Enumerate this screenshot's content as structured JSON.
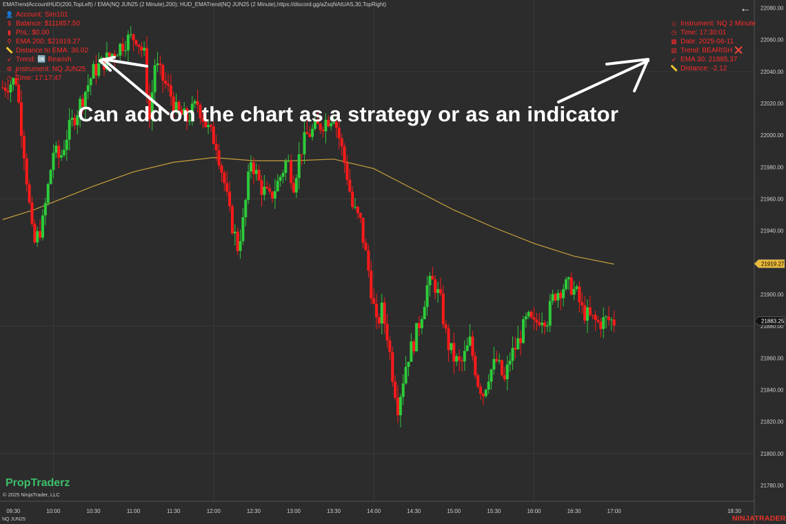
{
  "top_bar": {
    "text": "EMATrendAccountHUD(200,TopLeft) / EMA(NQ JUN25 (2 Minute),200); HUD_EMATrend(NQ JUN25 (2 Minute),https://discord.gg/aZsqNAtUAS,30,TopRight)",
    "back_icon": "arrow-left-icon"
  },
  "hud_left": [
    {
      "icon": "user-icon",
      "glyph": "👤",
      "text": "Account: Sim101"
    },
    {
      "icon": "dollar-icon",
      "glyph": "$",
      "text": "Balance: $111857.50"
    },
    {
      "icon": "bar-chart-icon",
      "glyph": "▮",
      "text": "PnL: $0.00"
    },
    {
      "icon": "pin-icon",
      "glyph": "⚲",
      "text": "EMA 200: $21919.27"
    },
    {
      "icon": "ruler-icon",
      "glyph": "📏",
      "text": "Distance to EMA: 36.02"
    },
    {
      "icon": "trend-icon",
      "glyph": "➶",
      "text": "Trend: 🆗 Bearish"
    },
    {
      "icon": "instrument-icon",
      "glyph": "⚙",
      "text": "Instrument: NQ JUN25"
    },
    {
      "icon": "clock-icon",
      "glyph": "◷",
      "text": "Time: 17:17:47"
    }
  ],
  "hud_right": [
    {
      "icon": "diamond-icon",
      "glyph": "◇",
      "text": "Instrument: NQ 2 Minute"
    },
    {
      "icon": "clock-icon",
      "glyph": "◷",
      "text": "Time: 17:30:01"
    },
    {
      "icon": "calendar-icon",
      "glyph": "▦",
      "text": "Date: 2025-06-11"
    },
    {
      "icon": "chart-icon",
      "glyph": "▤",
      "text": "Trend: BEARISH ❌"
    },
    {
      "icon": "trend-icon",
      "glyph": "➶",
      "text": "EMA 30: 21885.37"
    },
    {
      "icon": "ruler-icon",
      "glyph": "📏",
      "text": "Distance: -2.12"
    }
  ],
  "caption": "Can add on the chart as a strategy or as an indicator",
  "brand": "PropTraderz",
  "copyright": "© 2025 NinjaTrader, LLC",
  "instrument_symbol": "NQ JUN25",
  "logo": "NINJATRADER",
  "colors": {
    "background": "#2c2c2c",
    "grid": "#3a3a3a",
    "up": "#2dcc3a",
    "down": "#ff1a1a",
    "ema": "#c8a23c",
    "hud_text": "#ff2a2a",
    "brand": "#3dbf6a",
    "logo": "#e8332a"
  },
  "chart_data": {
    "type": "candlestick",
    "instrument": "NQ JUN25",
    "ylim": [
      21770,
      22085
    ],
    "yticks": [
      21780,
      21800,
      21820,
      21840,
      21860,
      21880,
      21900,
      21920,
      21940,
      21960,
      21980,
      22000,
      22020,
      22040,
      22060,
      22080
    ],
    "ytick_labels": [
      "21780.00",
      "21800.00",
      "21820.00",
      "21840.00",
      "21860.00",
      "21880.00",
      "21900.00",
      "21920.00",
      "21940.00",
      "21960.00",
      "21980.00",
      "22000.00",
      "22020.00",
      "22040.00",
      "22060.00",
      "22080.00"
    ],
    "xlim": [
      "09:20",
      "18:45"
    ],
    "xticks": [
      "09:30",
      "10:00",
      "10:30",
      "11:00",
      "11:30",
      "12:00",
      "12:30",
      "13:00",
      "13:30",
      "14:00",
      "14:30",
      "15:00",
      "15:30",
      "16:00",
      "16:30",
      "17:00",
      "18:30"
    ],
    "price_markers": [
      {
        "label": "21919.27",
        "value": 21919.27,
        "color": "#e8b838",
        "text_color": "#000000"
      },
      {
        "label": "21883.25",
        "value": 21883.25,
        "color": "#111111",
        "text_color": "#ffffff"
      }
    ],
    "ema_200": [
      [
        "09:22",
        21947
      ],
      [
        "09:45",
        21953
      ],
      [
        "10:00",
        21958
      ],
      [
        "10:30",
        21968
      ],
      [
        "11:00",
        21977
      ],
      [
        "11:30",
        21983
      ],
      [
        "12:00",
        21986
      ],
      [
        "12:30",
        21984
      ],
      [
        "13:00",
        21984
      ],
      [
        "13:30",
        21985
      ],
      [
        "14:00",
        21979
      ],
      [
        "14:30",
        21966
      ],
      [
        "15:00",
        21953
      ],
      [
        "15:30",
        21942
      ],
      [
        "16:00",
        21932
      ],
      [
        "16:30",
        21924
      ],
      [
        "17:00",
        21919
      ]
    ],
    "anchors": [
      [
        "09:22",
        22030
      ],
      [
        "09:32",
        22035
      ],
      [
        "09:38",
        21990
      ],
      [
        "09:45",
        21930
      ],
      [
        "09:52",
        21945
      ],
      [
        "10:00",
        21990
      ],
      [
        "10:05",
        21985
      ],
      [
        "10:10",
        22000
      ],
      [
        "10:20",
        22020
      ],
      [
        "10:30",
        22040
      ],
      [
        "10:40",
        22048
      ],
      [
        "10:55",
        22060
      ],
      [
        "11:02",
        22062
      ],
      [
        "11:08",
        22050
      ],
      [
        "11:12",
        22010
      ],
      [
        "11:16",
        22045
      ],
      [
        "11:22",
        22035
      ],
      [
        "11:28",
        22025
      ],
      [
        "11:32",
        22015
      ],
      [
        "11:40",
        22010
      ],
      [
        "11:48",
        22020
      ],
      [
        "11:55",
        22005
      ],
      [
        "12:02",
        21995
      ],
      [
        "12:08",
        21970
      ],
      [
        "12:12",
        21950
      ],
      [
        "12:18",
        21930
      ],
      [
        "12:22",
        21945
      ],
      [
        "12:28",
        21985
      ],
      [
        "12:35",
        21968
      ],
      [
        "12:42",
        21960
      ],
      [
        "12:48",
        21970
      ],
      [
        "12:55",
        21985
      ],
      [
        "13:00",
        21970
      ],
      [
        "13:05",
        21990
      ],
      [
        "13:10",
        22000
      ],
      [
        "13:18",
        22005
      ],
      [
        "13:25",
        22010
      ],
      [
        "13:30",
        22013
      ],
      [
        "13:35",
        21995
      ],
      [
        "13:40",
        21975
      ],
      [
        "13:44",
        21955
      ],
      [
        "13:50",
        21945
      ],
      [
        "13:56",
        21915
      ],
      [
        "14:02",
        21880
      ],
      [
        "14:06",
        21890
      ],
      [
        "14:10",
        21875
      ],
      [
        "14:14",
        21850
      ],
      [
        "14:18",
        21830
      ],
      [
        "14:25",
        21860
      ],
      [
        "14:30",
        21870
      ],
      [
        "14:35",
        21885
      ],
      [
        "14:40",
        21905
      ],
      [
        "14:45",
        21908
      ],
      [
        "14:50",
        21895
      ],
      [
        "14:55",
        21870
      ],
      [
        "15:00",
        21860
      ],
      [
        "15:05",
        21855
      ],
      [
        "15:12",
        21870
      ],
      [
        "15:18",
        21845
      ],
      [
        "15:22",
        21838
      ],
      [
        "15:26",
        21850
      ],
      [
        "15:32",
        21858
      ],
      [
        "15:38",
        21845
      ],
      [
        "15:42",
        21860
      ],
      [
        "15:48",
        21870
      ],
      [
        "15:55",
        21885
      ],
      [
        "16:00",
        21880
      ],
      [
        "16:05",
        21887
      ],
      [
        "16:10",
        21885
      ],
      [
        "16:15",
        21900
      ],
      [
        "16:22",
        21905
      ],
      [
        "16:28",
        21905
      ],
      [
        "16:32",
        21900
      ],
      [
        "16:36",
        21890
      ],
      [
        "16:42",
        21885
      ],
      [
        "16:48",
        21882
      ],
      [
        "16:55",
        21884
      ],
      [
        "17:00",
        21883
      ]
    ]
  }
}
